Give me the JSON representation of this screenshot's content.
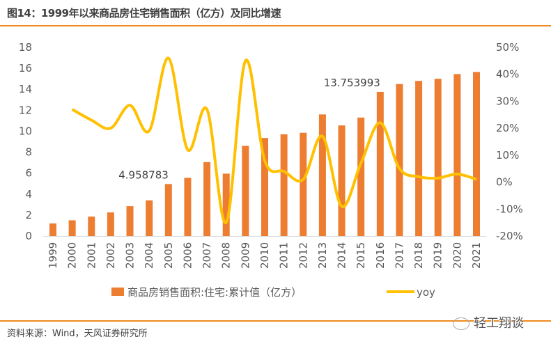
{
  "title": "图14：1999年以来商品房住宅销售面积（亿方）及同比增速",
  "source": "资料来源：Wind，天风证券研究所",
  "watermark": "轻工翔谈",
  "chart_data": {
    "type": "bar+line",
    "categories": [
      "1999",
      "2000",
      "2001",
      "2002",
      "2003",
      "2004",
      "2005",
      "2006",
      "2007",
      "2008",
      "2009",
      "2010",
      "2011",
      "2012",
      "2013",
      "2014",
      "2015",
      "2016",
      "2017",
      "2018",
      "2019",
      "2020",
      "2021"
    ],
    "series": [
      {
        "name": "商品房销售面积:住宅:累计值（亿方）",
        "type": "bar",
        "axis": "left",
        "color": "#ED7D31",
        "values": [
          1.2,
          1.5,
          1.85,
          2.25,
          2.85,
          3.4,
          4.958783,
          5.55,
          7.05,
          5.95,
          8.6,
          9.35,
          9.7,
          9.85,
          11.6,
          10.55,
          11.3,
          13.753993,
          14.5,
          14.8,
          15.0,
          15.45,
          15.65
        ]
      },
      {
        "name": "yoy",
        "type": "line",
        "axis": "right",
        "color": "#FFC000",
        "values": [
          null,
          27,
          23,
          20,
          28.5,
          19,
          46,
          12,
          27,
          -15,
          45,
          8,
          4,
          1,
          17,
          -9,
          7,
          22,
          5,
          2,
          1.5,
          3,
          1
        ]
      }
    ],
    "data_labels": [
      {
        "category": "2005",
        "text": "4.958783"
      },
      {
        "category": "2016",
        "text": "13.753993"
      }
    ],
    "left_axis": {
      "ylim": [
        0,
        18
      ],
      "ticks": [
        "0",
        "2",
        "4",
        "6",
        "8",
        "10",
        "12",
        "14",
        "16",
        "18"
      ]
    },
    "right_axis": {
      "ylim": [
        -20,
        50
      ],
      "ticks": [
        "-20%",
        "-10%",
        "0%",
        "10%",
        "20%",
        "30%",
        "40%",
        "50%"
      ]
    },
    "grid": false,
    "legend": {
      "placement": "bottom",
      "items": [
        "商品房销售面积:住宅:累计值（亿方）",
        "yoy"
      ]
    }
  }
}
